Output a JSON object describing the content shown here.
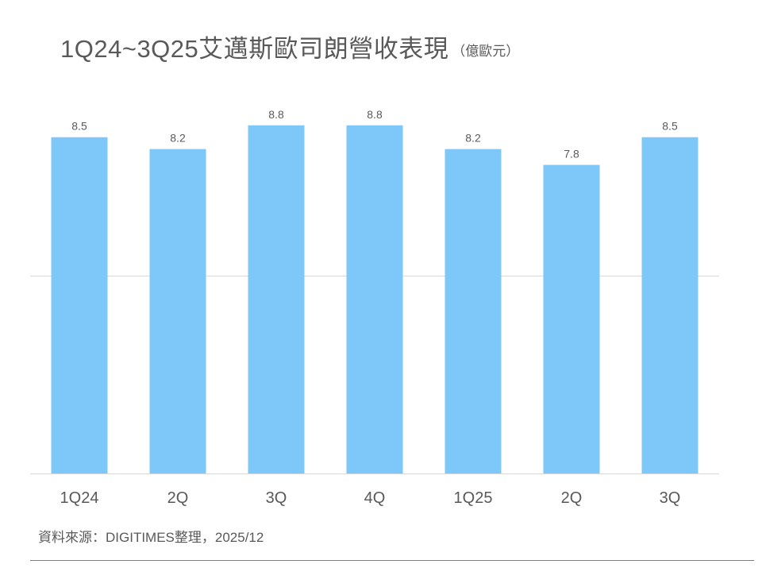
{
  "header": {
    "title": "1Q24~3Q25艾邁斯歐司朗營收表現",
    "unit": "（億歐元）"
  },
  "chart_data": {
    "type": "bar",
    "categories": [
      "1Q24",
      "2Q",
      "3Q",
      "4Q",
      "1Q25",
      "2Q",
      "3Q"
    ],
    "values": [
      8.5,
      8.2,
      8.8,
      8.8,
      8.2,
      7.8,
      8.5
    ],
    "data_labels": [
      "8.5",
      "8.2",
      "8.8",
      "8.8",
      "8.2",
      "7.8",
      "8.5"
    ],
    "ylim": [
      0,
      10
    ],
    "gridlines": [
      5
    ],
    "grid": true,
    "legend": "none",
    "bar_color": "#7DC8F9",
    "label_color": "#595959"
  },
  "footer": {
    "source": "資料來源：DIGITIMES整理，2025/12"
  }
}
